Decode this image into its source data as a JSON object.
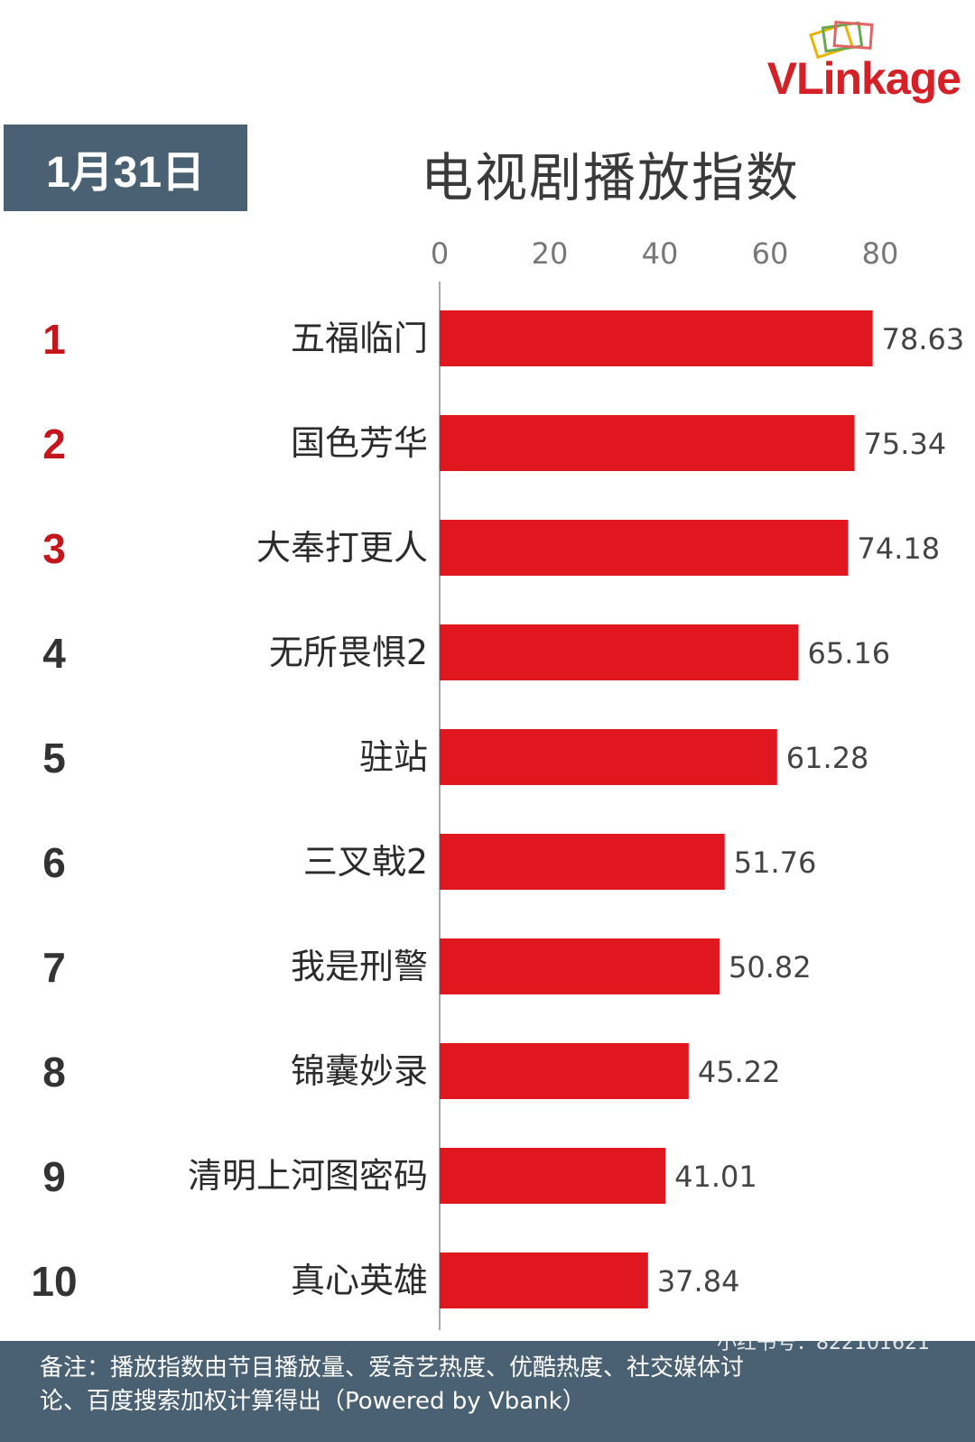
{
  "logo": {
    "text": "VLinkage"
  },
  "header": {
    "date": "1月31日",
    "title": "电视剧播放指数"
  },
  "chart_data": {
    "type": "bar",
    "orientation": "horizontal",
    "categories": [
      "五福临门",
      "国色芳华",
      "大奉打更人",
      "无所畏惧2",
      "驻站",
      "三叉戟2",
      "我是刑警",
      "锦囊妙录",
      "清明上河图密码",
      "真心英雄"
    ],
    "values": [
      78.63,
      75.34,
      74.18,
      65.16,
      61.28,
      51.76,
      50.82,
      45.22,
      41.01,
      37.84
    ],
    "value_labels": [
      "78.63",
      "75.34",
      "74.18",
      "65.16",
      "61.28",
      "51.76",
      "50.82",
      "45.22",
      "41.01",
      "37.84"
    ],
    "ranks": [
      "1",
      "2",
      "3",
      "4",
      "5",
      "6",
      "7",
      "8",
      "9",
      "10"
    ],
    "xticks": [
      "0",
      "20",
      "40",
      "60",
      "80"
    ],
    "xlim": [
      0,
      80
    ],
    "tick_position": "top",
    "grid": false,
    "bar_color": "#e0171f",
    "top_rank_color": "#c4161c",
    "rank_color": "#333333"
  },
  "footer": {
    "note_line1": "备注：播放指数由节目播放量、爱奇艺热度、优酷热度、社交媒体讨",
    "note_line2": "论、百度搜索加权计算得出（Powered by Vbank）",
    "watermark": "小红书号：822101621"
  }
}
